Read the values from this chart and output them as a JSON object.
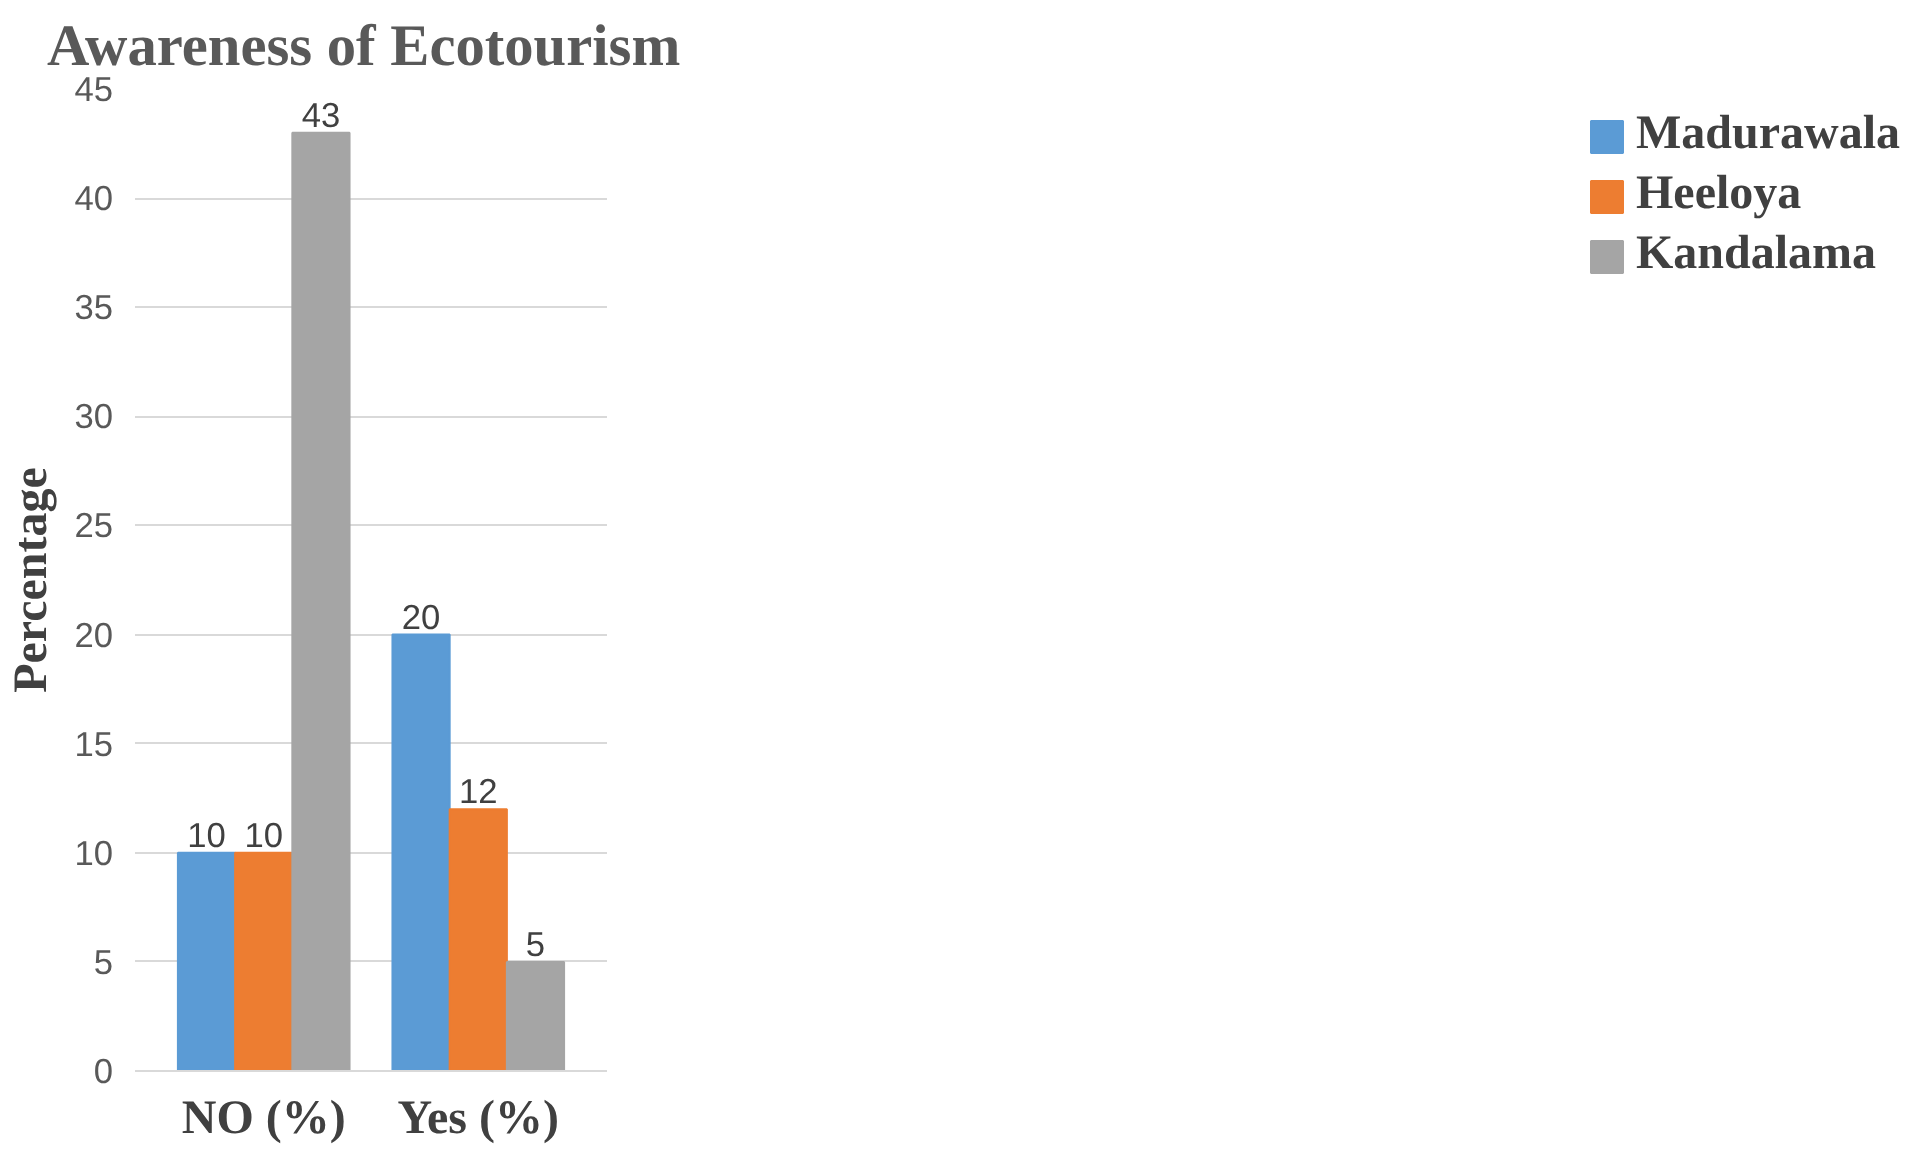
{
  "chart_data": {
    "type": "bar",
    "title": "Awareness  of Ecotourism",
    "ylabel": "Percentage",
    "categories": [
      "NO (%)",
      "Yes (%)"
    ],
    "series": [
      {
        "name": "Madurawala",
        "color": "#5b9bd5",
        "values": [
          10,
          20
        ]
      },
      {
        "name": "Heeloya",
        "color": "#ed7d31",
        "values": [
          10,
          12
        ]
      },
      {
        "name": "Kandalama",
        "color": "#a5a5a5",
        "values": [
          43,
          5
        ]
      }
    ],
    "ylim": [
      0,
      45
    ],
    "yticks": [
      0,
      5,
      10,
      15,
      20,
      25,
      30,
      35,
      40,
      45
    ],
    "grid": "y",
    "legend": "right",
    "data_labels": true
  }
}
